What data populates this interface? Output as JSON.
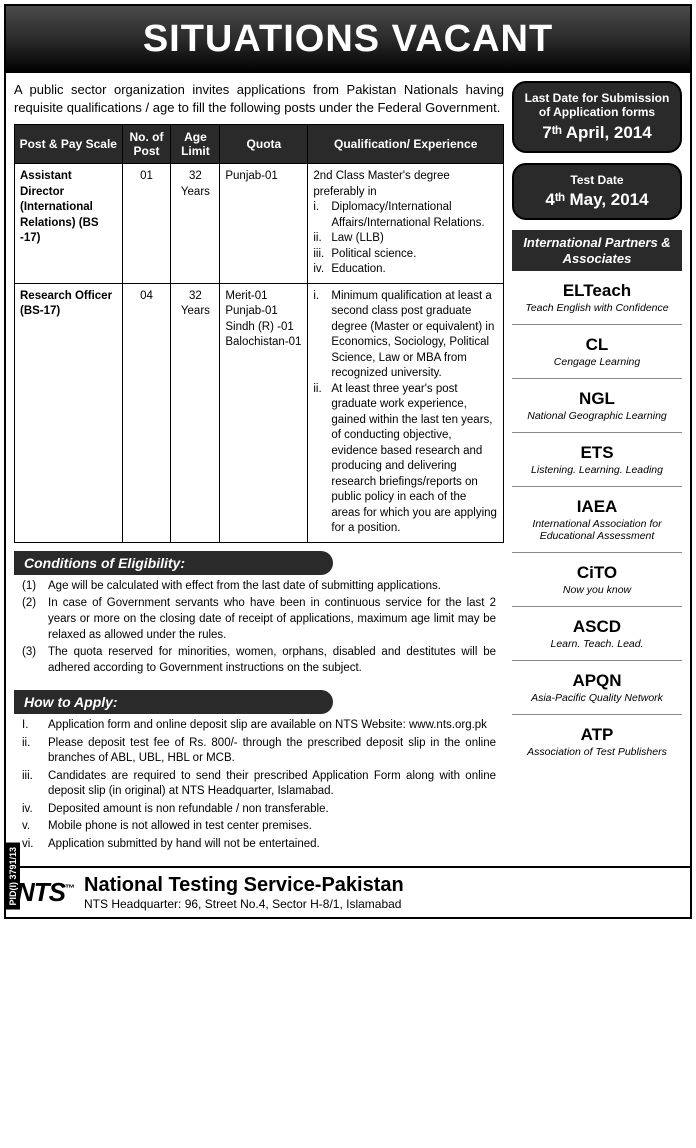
{
  "header": {
    "title": "SITUATIONS VACANT"
  },
  "intro": "A public sector organization invites applications from Pakistan Nationals having requisite qualifications / age to fill the following posts under the Federal Government.",
  "table": {
    "headers": [
      "Post & Pay Scale",
      "No. of Post",
      "Age Limit",
      "Quota",
      "Qualification/ Experience"
    ],
    "rows": [
      {
        "post": "Assistant Director (International Relations) (BS -17)",
        "no": "01",
        "age": "32 Years",
        "quota": "Punjab-01",
        "qual_intro": "2nd Class Master's degree preferably in",
        "qual_items": [
          {
            "n": "i.",
            "t": "Diplomacy/International Affairs/International Relations."
          },
          {
            "n": "ii.",
            "t": "Law (LLB)"
          },
          {
            "n": "iii.",
            "t": "Political science."
          },
          {
            "n": "iv.",
            "t": "Education."
          }
        ]
      },
      {
        "post": "Research Officer (BS-17)",
        "no": "04",
        "age": "32 Years",
        "quota": "Merit-01 Punjab-01 Sindh (R) -01 Balochistan-01",
        "qual_intro": "",
        "qual_items": [
          {
            "n": "i.",
            "t": "Minimum qualification at least a second class post graduate degree (Master or equivalent) in Economics, Sociology, Political Science, Law or MBA from recognized university."
          },
          {
            "n": "ii.",
            "t": "At least three year's post graduate work experience, gained within the last ten years, of conducting objective, evidence based research and producing and delivering research briefings/reports on public policy in each of the areas for which you are applying for a position."
          }
        ]
      }
    ]
  },
  "eligibility": {
    "title": "Conditions of Eligibility:",
    "items": [
      {
        "n": "(1)",
        "t": "Age will be calculated with effect from the last date of submitting applications."
      },
      {
        "n": "(2)",
        "t": "In case of Government servants who have been in continuous service for the last 2 years or more on the closing date of receipt of applications, maximum age limit may be relaxed as allowed under the rules."
      },
      {
        "n": "(3)",
        "t": "The quota reserved for minorities, women, orphans, disabled and destitutes will be adhered according to Government instructions on the subject."
      }
    ]
  },
  "apply": {
    "title": "How to Apply:",
    "items": [
      {
        "n": "I.",
        "t": "Application form and online deposit slip are available on NTS Website: www.nts.org.pk"
      },
      {
        "n": "ii.",
        "t": "Please deposit test fee of Rs. 800/- through the prescribed deposit slip in the online branches of ABL, UBL, HBL or MCB."
      },
      {
        "n": "iii.",
        "t": "Candidates are required to send their prescribed Application Form along with online deposit slip (in original) at NTS Headquarter, Islamabad."
      },
      {
        "n": "iv.",
        "t": "Deposited amount is non refundable / non transferable."
      },
      {
        "n": "v.",
        "t": "Mobile phone is not allowed in test center premises."
      },
      {
        "n": "vi.",
        "t": "Application submitted by hand will not be entertained."
      }
    ]
  },
  "dates": {
    "submission": {
      "label": "Last Date for Submission of Application forms",
      "value": "7ᵗʰ April, 2014"
    },
    "test": {
      "label": "Test Date",
      "value": "4ᵗʰ May, 2014"
    }
  },
  "partners": {
    "title": "International Partners & Associates",
    "list": [
      {
        "name": "ELTeach",
        "tag": "Teach English with Confidence"
      },
      {
        "name": "CL",
        "tag": "Cengage Learning"
      },
      {
        "name": "NGL",
        "tag": "National Geographic Learning"
      },
      {
        "name": "ETS",
        "tag": "Listening. Learning. Leading"
      },
      {
        "name": "IAEA",
        "tag": "International Association for Educational Assessment"
      },
      {
        "name": "CiTO",
        "tag": "Now you know"
      },
      {
        "name": "ASCD",
        "tag": "Learn. Teach. Lead."
      },
      {
        "name": "APQN",
        "tag": "Asia-Pacific Quality Network"
      },
      {
        "name": "ATP",
        "tag": "Association of Test Publishers"
      }
    ]
  },
  "footer": {
    "logo": "NTS",
    "tm": "™",
    "title": "National Testing Service-Pakistan",
    "address": "NTS Headquarter: 96, Street No.4, Sector H-8/1, Islamabad"
  },
  "pid": "PID(I) 3791/13",
  "colors": {
    "header_bg": "#2a2a2a",
    "text": "#000000",
    "border": "#000000"
  }
}
